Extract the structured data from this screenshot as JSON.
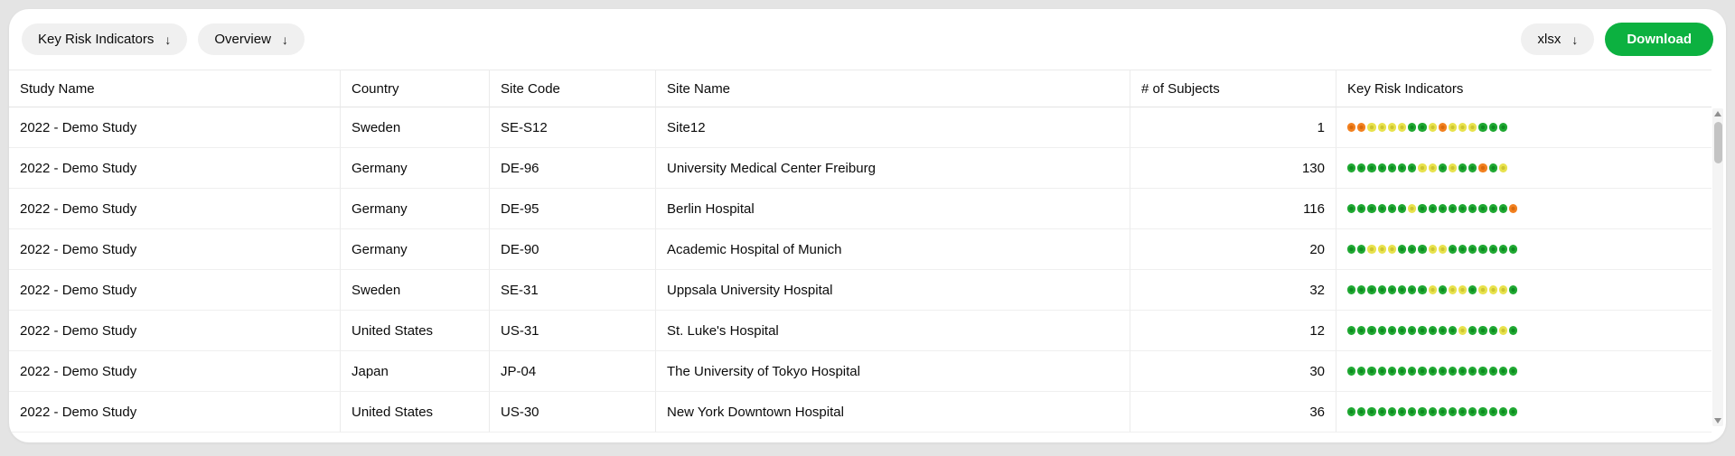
{
  "icons": {
    "arrow_down": "↓"
  },
  "colors": {
    "dot_green": "#1fa832",
    "dot_yellow": "#e8e24c",
    "dot_orange": "#f2801f",
    "download_bg": "#0cb140",
    "download_text": "#ffffff"
  },
  "toolbar": {
    "kri_filter_label": "Key Risk Indicators",
    "overview_filter_label": "Overview",
    "format_label": "xlsx",
    "download_label": "Download"
  },
  "table": {
    "columns": [
      "Study Name",
      "Country",
      "Site Code",
      "Site Name",
      "# of Subjects",
      "Key Risk Indicators"
    ],
    "rows": [
      {
        "study": "2022 - Demo Study",
        "country": "Sweden",
        "site_code": "SE-S12",
        "site_name": "Site12",
        "subjects": "1",
        "kri": [
          "orange",
          "orange",
          "yellow",
          "yellow",
          "yellow",
          "yellow",
          "green",
          "green",
          "yellow",
          "orange",
          "yellow",
          "yellow",
          "yellow",
          "green",
          "green",
          "green"
        ]
      },
      {
        "study": "2022 - Demo Study",
        "country": "Germany",
        "site_code": "DE-96",
        "site_name": "University Medical Center Freiburg",
        "subjects": "130",
        "kri": [
          "green",
          "green",
          "green",
          "green",
          "green",
          "green",
          "green",
          "yellow",
          "yellow",
          "green",
          "yellow",
          "green",
          "green",
          "orange",
          "green",
          "yellow"
        ]
      },
      {
        "study": "2022 - Demo Study",
        "country": "Germany",
        "site_code": "DE-95",
        "site_name": "Berlin Hospital",
        "subjects": "116",
        "kri": [
          "green",
          "green",
          "green",
          "green",
          "green",
          "green",
          "yellow",
          "green",
          "green",
          "green",
          "green",
          "green",
          "green",
          "green",
          "green",
          "green",
          "orange"
        ]
      },
      {
        "study": "2022 - Demo Study",
        "country": "Germany",
        "site_code": "DE-90",
        "site_name": "Academic Hospital of Munich",
        "subjects": "20",
        "kri": [
          "green",
          "green",
          "yellow",
          "yellow",
          "yellow",
          "green",
          "green",
          "green",
          "yellow",
          "yellow",
          "green",
          "green",
          "green",
          "green",
          "green",
          "green",
          "green"
        ]
      },
      {
        "study": "2022 - Demo Study",
        "country": "Sweden",
        "site_code": "SE-31",
        "site_name": "Uppsala University Hospital",
        "subjects": "32",
        "kri": [
          "green",
          "green",
          "green",
          "green",
          "green",
          "green",
          "green",
          "green",
          "yellow",
          "green",
          "yellow",
          "yellow",
          "green",
          "yellow",
          "yellow",
          "yellow",
          "green"
        ]
      },
      {
        "study": "2022 - Demo Study",
        "country": "United States",
        "site_code": "US-31",
        "site_name": "St. Luke's Hospital",
        "subjects": "12",
        "kri": [
          "green",
          "green",
          "green",
          "green",
          "green",
          "green",
          "green",
          "green",
          "green",
          "green",
          "green",
          "yellow",
          "green",
          "green",
          "green",
          "yellow",
          "green"
        ]
      },
      {
        "study": "2022 - Demo Study",
        "country": "Japan",
        "site_code": "JP-04",
        "site_name": "The University of Tokyo Hospital",
        "subjects": "30",
        "kri": [
          "green",
          "green",
          "green",
          "green",
          "green",
          "green",
          "green",
          "green",
          "green",
          "green",
          "green",
          "green",
          "green",
          "green",
          "green",
          "green",
          "green"
        ]
      },
      {
        "study": "2022 - Demo Study",
        "country": "United States",
        "site_code": "US-30",
        "site_name": "New York Downtown Hospital",
        "subjects": "36",
        "kri": [
          "green",
          "green",
          "green",
          "green",
          "green",
          "green",
          "green",
          "green",
          "green",
          "green",
          "green",
          "green",
          "green",
          "green",
          "green",
          "green",
          "green"
        ]
      }
    ]
  }
}
